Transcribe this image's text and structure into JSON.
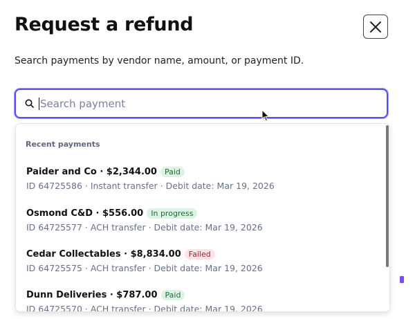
{
  "title": "Request a refund",
  "subtitle": "Search payments by vendor name, amount, or payment ID.",
  "search": {
    "placeholder": "Search payment",
    "value": ""
  },
  "close_icon": "close-icon",
  "dropdown": {
    "section_label": "Recent payments",
    "items": [
      {
        "heading": "Paider and Co · $2,344.00",
        "status": "Paid",
        "details": "ID 64725586 · Instant transfer · Debit date: Mar 19, 2026"
      },
      {
        "heading": "Osmond C&D · $556.00",
        "status": "In progress",
        "details": "ID 64725577 · ACH transfer · Debit date: Mar 19, 2026"
      },
      {
        "heading": "Cedar Collectables · $8,834.00",
        "status": "Failed",
        "details": "ID 64725575 · ACH transfer · Debit date: Mar 19, 2026"
      },
      {
        "heading": "Dunn Deliveries · $787.00",
        "status": "Paid",
        "details": "ID 64725570 · ACH transfer · Debit date: Mar 19, 2026"
      }
    ]
  },
  "colors": {
    "accent": "#5a4cf0",
    "paid_bg": "#ddf3e4",
    "failed_bg": "#fde3e5"
  }
}
